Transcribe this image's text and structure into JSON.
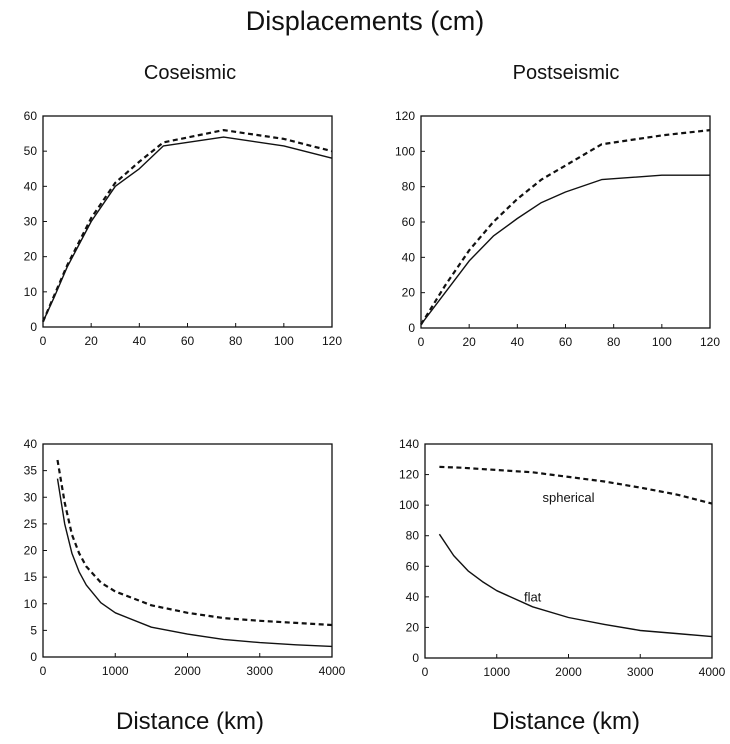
{
  "page": {
    "title": "Displacements (cm)",
    "column_titles": [
      "Coseismic",
      "Postseismic"
    ],
    "x_axis_label": "Distance (km)"
  },
  "chart_data": [
    {
      "type": "line",
      "title": "Coseismic",
      "xlabel": "",
      "ylabel": "",
      "xlim": [
        0,
        120
      ],
      "ylim": [
        0,
        60
      ],
      "xticks": [
        0,
        20,
        40,
        60,
        80,
        100,
        120
      ],
      "yticks": [
        0,
        10,
        20,
        30,
        40,
        50,
        60
      ],
      "grid": false,
      "series": [
        {
          "style": "solid",
          "x": [
            0,
            5,
            10,
            20,
            30,
            40,
            50,
            75,
            100,
            120
          ],
          "y": [
            1.5,
            9,
            17,
            30,
            40,
            45,
            51.5,
            54,
            51.5,
            48
          ]
        },
        {
          "style": "dashed",
          "x": [
            0,
            5,
            10,
            20,
            30,
            40,
            50,
            75,
            100,
            120
          ],
          "y": [
            1.5,
            9.5,
            17.5,
            31,
            41,
            47,
            52.5,
            56,
            53.5,
            50
          ]
        }
      ]
    },
    {
      "type": "line",
      "title": "Postseismic",
      "xlabel": "",
      "ylabel": "",
      "xlim": [
        0,
        120
      ],
      "ylim": [
        0,
        120
      ],
      "xticks": [
        0,
        20,
        40,
        60,
        80,
        100,
        120
      ],
      "yticks": [
        0,
        20,
        40,
        60,
        80,
        100,
        120
      ],
      "grid": false,
      "series": [
        {
          "style": "solid",
          "x": [
            0,
            10,
            20,
            30,
            40,
            50,
            60,
            75,
            100,
            120
          ],
          "y": [
            2,
            20,
            38,
            52,
            62,
            71,
            77,
            84,
            86.5,
            86.5
          ]
        },
        {
          "style": "dashed",
          "x": [
            0,
            10,
            20,
            30,
            40,
            50,
            60,
            75,
            100,
            120
          ],
          "y": [
            2,
            24,
            44,
            60,
            73,
            84,
            92,
            104,
            109,
            112
          ]
        }
      ]
    },
    {
      "type": "line",
      "title": "",
      "xlabel": "Distance (km)",
      "ylabel": "",
      "xlim": [
        0,
        4000
      ],
      "ylim": [
        0,
        40
      ],
      "xticks": [
        0,
        1000,
        2000,
        3000,
        4000
      ],
      "yticks": [
        0,
        5,
        10,
        15,
        20,
        25,
        30,
        35,
        40
      ],
      "grid": false,
      "series": [
        {
          "style": "solid",
          "x": [
            200,
            300,
            400,
            500,
            600,
            800,
            1000,
            1500,
            2000,
            2500,
            3000,
            3500,
            4000
          ],
          "y": [
            33.5,
            25,
            19.5,
            16,
            13.5,
            10.2,
            8.3,
            5.6,
            4.3,
            3.3,
            2.7,
            2.3,
            2
          ]
        },
        {
          "style": "dashed",
          "x": [
            200,
            300,
            400,
            500,
            600,
            800,
            1000,
            1500,
            2000,
            2500,
            3000,
            3500,
            4000
          ],
          "y": [
            37,
            29,
            23,
            19.5,
            17,
            14,
            12.3,
            9.7,
            8.3,
            7.3,
            6.8,
            6.4,
            6
          ]
        }
      ]
    },
    {
      "type": "line",
      "title": "",
      "xlabel": "Distance (km)",
      "ylabel": "",
      "xlim": [
        0,
        4000
      ],
      "ylim": [
        0,
        140
      ],
      "xticks": [
        0,
        1000,
        2000,
        3000,
        4000
      ],
      "yticks": [
        0,
        20,
        40,
        60,
        80,
        100,
        120,
        140
      ],
      "grid": false,
      "annotations": [
        {
          "text": "spherical",
          "x": 2000,
          "y": 102
        },
        {
          "text": "flat",
          "x": 1500,
          "y": 37
        }
      ],
      "series": [
        {
          "style": "solid",
          "x": [
            200,
            400,
            600,
            800,
            1000,
            1500,
            2000,
            2500,
            3000,
            3500,
            4000
          ],
          "y": [
            81,
            67,
            57,
            50,
            44,
            33.5,
            26.5,
            22,
            18,
            16,
            14
          ]
        },
        {
          "style": "dashed",
          "x": [
            200,
            500,
            1000,
            1500,
            2000,
            2500,
            3000,
            3500,
            4000
          ],
          "y": [
            125,
            124.5,
            123,
            121.5,
            118.5,
            115.5,
            111.5,
            107,
            101
          ]
        }
      ]
    }
  ]
}
